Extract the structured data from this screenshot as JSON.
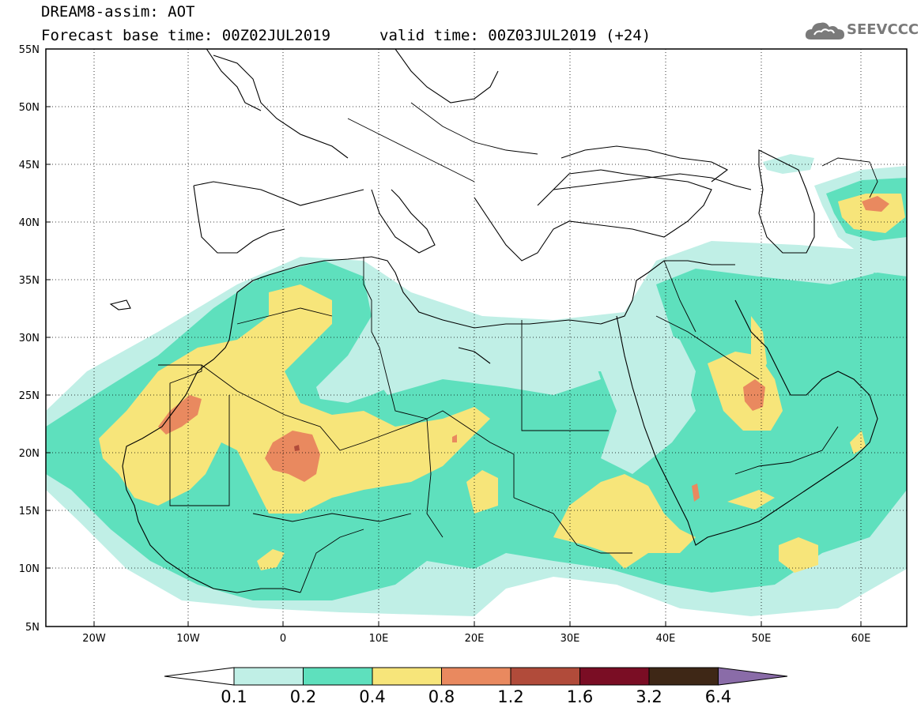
{
  "header": {
    "model": "DREAM8-assim: AOT",
    "base_time": "Forecast base time: 00Z02JUL2019",
    "valid_time": "valid time: 00Z03JUL2019 (+24)"
  },
  "logo": {
    "text": "SEEVCCC",
    "icon": "cloud-logo-icon"
  },
  "map": {
    "region": "Northern Africa, Mediterranean, Middle East",
    "lat_range": [
      5,
      55
    ],
    "lon_range": [
      -25,
      65
    ],
    "lat_labels": [
      "55N",
      "50N",
      "45N",
      "40N",
      "35N",
      "30N",
      "25N",
      "20N",
      "15N",
      "10N",
      "5N"
    ],
    "lon_labels": [
      "20W",
      "10W",
      "0",
      "10E",
      "20E",
      "30E",
      "40E",
      "50E",
      "60E"
    ],
    "lat_ticks": [
      55,
      50,
      45,
      40,
      35,
      30,
      25,
      20,
      15,
      10,
      5
    ],
    "lon_ticks": [
      -20,
      -10,
      0,
      10,
      20,
      30,
      40,
      50,
      60
    ],
    "gridlines": "dotted"
  },
  "colorbar": {
    "labels": [
      "0.1",
      "0.2",
      "0.4",
      "0.8",
      "1.2",
      "1.6",
      "3.2",
      "6.4"
    ],
    "colors": [
      "#ffffff",
      "#c0efe6",
      "#5ee0bd",
      "#f7e57a",
      "#e9895f",
      "#b14b3a",
      "#7a0d24",
      "#3e2716",
      "#8a6ca8"
    ]
  }
}
